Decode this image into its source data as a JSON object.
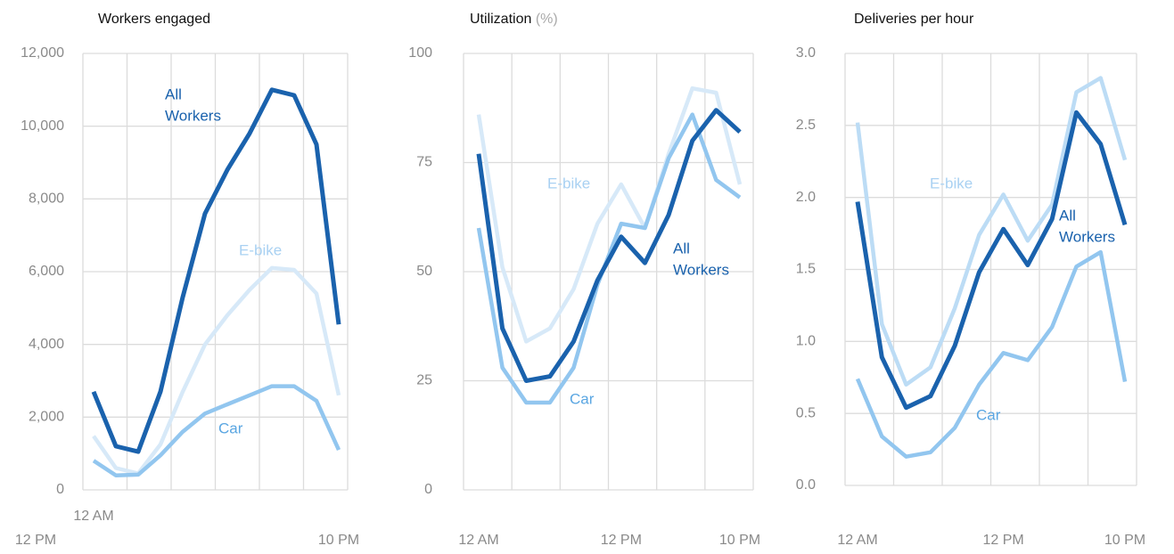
{
  "chart_data": [
    {
      "type": "line",
      "title": "Workers engaged",
      "categories": [
        "12 AM",
        null,
        null,
        null,
        null,
        null,
        "12 PM",
        null,
        null,
        null,
        null,
        "10 PM"
      ],
      "ylim": [
        0,
        12000
      ],
      "yticks": [
        0,
        {
          "value": 2000,
          "label": "2,000"
        },
        {
          "value": 4000,
          "label": "4,000"
        },
        {
          "value": 6000,
          "label": "6,000"
        },
        {
          "value": 8000,
          "label": "8,000"
        },
        {
          "value": 10000,
          "label": "10,000"
        },
        {
          "value": 12000,
          "label": "12,000"
        }
      ],
      "grid": true,
      "series": [
        {
          "name": "E-bike",
          "color": "#d7e9f8",
          "values": [
            1480,
            600,
            450,
            1250,
            2700,
            4000,
            4800,
            5500,
            6100,
            6050,
            5400,
            2600
          ]
        },
        {
          "name": "Car",
          "color": "#92c6ef",
          "values": [
            800,
            400,
            420,
            950,
            1600,
            2100,
            2350,
            2600,
            2850,
            2850,
            2450,
            1100
          ]
        },
        {
          "name": "All Workers",
          "color": "#1a62ad",
          "values": [
            2700,
            1200,
            1050,
            2700,
            5300,
            7600,
            8800,
            9800,
            11000,
            10850,
            9500,
            4550
          ]
        }
      ],
      "annotations": [
        {
          "lines": [
            "All",
            "Workers"
          ],
          "color": "#1a62ad"
        },
        {
          "lines": [
            "E-bike"
          ],
          "color": "#a9d1f2"
        },
        {
          "lines": [
            "Car"
          ],
          "color": "#5aa6e2"
        }
      ]
    },
    {
      "type": "line",
      "title": "Utilization",
      "title_unit": "(%)",
      "categories": [
        "12 AM",
        null,
        null,
        null,
        null,
        null,
        "12 PM",
        null,
        null,
        null,
        null,
        "10 PM"
      ],
      "ylim": [
        0,
        100
      ],
      "yticks": [
        0,
        25,
        50,
        75,
        100
      ],
      "grid": true,
      "series": [
        {
          "name": "E-bike",
          "color": "#d7e9f8",
          "values": [
            86,
            51,
            34,
            37,
            46,
            61,
            70,
            60,
            77,
            92,
            91,
            70
          ]
        },
        {
          "name": "Car",
          "color": "#92c6ef",
          "values": [
            60,
            28,
            20,
            20,
            28,
            47,
            61,
            60,
            76,
            86,
            71,
            67
          ]
        },
        {
          "name": "All Workers",
          "color": "#1a62ad",
          "values": [
            77,
            37,
            25,
            26,
            34,
            48,
            58,
            52,
            63,
            80,
            87,
            82
          ]
        }
      ],
      "annotations": [
        {
          "lines": [
            "E-bike"
          ],
          "color": "#a9d1f2"
        },
        {
          "lines": [
            "All",
            "Workers"
          ],
          "color": "#1a62ad"
        },
        {
          "lines": [
            "Car"
          ],
          "color": "#5aa6e2"
        }
      ]
    },
    {
      "type": "line",
      "title": "Deliveries per hour",
      "categories": [
        "12 AM",
        null,
        null,
        null,
        null,
        null,
        "12 PM",
        null,
        null,
        null,
        null,
        "10 PM"
      ],
      "ylim": [
        0,
        3
      ],
      "yticks": [
        {
          "value": 0,
          "label": "0.0"
        },
        0.5,
        {
          "value": 1,
          "label": "1.0"
        },
        1.5,
        {
          "value": 2,
          "label": "2.0"
        },
        2.5,
        {
          "value": 3,
          "label": "3.0"
        }
      ],
      "grid": true,
      "series": [
        {
          "name": "E-bike",
          "color": "#bcdcf5",
          "values": [
            2.52,
            1.12,
            0.7,
            0.82,
            1.23,
            1.74,
            2.02,
            1.7,
            1.95,
            2.73,
            2.83,
            2.26
          ]
        },
        {
          "name": "Car",
          "color": "#92c6ef",
          "values": [
            0.74,
            0.34,
            0.2,
            0.23,
            0.4,
            0.7,
            0.92,
            0.87,
            1.1,
            1.52,
            1.62,
            0.72
          ]
        },
        {
          "name": "All Workers",
          "color": "#1a62ad",
          "values": [
            1.97,
            0.89,
            0.54,
            0.62,
            0.97,
            1.48,
            1.78,
            1.53,
            1.85,
            2.59,
            2.37,
            1.81
          ]
        }
      ],
      "annotations": [
        {
          "lines": [
            "E-bike"
          ],
          "color": "#a9d1f2"
        },
        {
          "lines": [
            "All",
            "Workers"
          ],
          "color": "#1a62ad"
        },
        {
          "lines": [
            "Car"
          ],
          "color": "#5aa6e2"
        }
      ]
    }
  ]
}
